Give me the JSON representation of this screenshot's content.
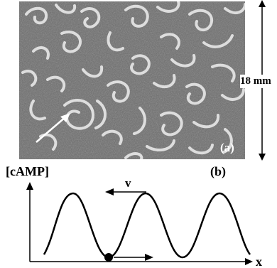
{
  "figure": {
    "panel_a_label": "(a)",
    "panel_b_label": "(b)",
    "scale_label": "18 mm",
    "ylabel": "[cAMP]",
    "xlabel": "x",
    "velocity_label": "v"
  },
  "colors": {
    "micrograph_background": "#6b6b6b",
    "spiral_stroke": "#e8e8e8",
    "ink": "#000000"
  },
  "chart_data": {
    "type": "line",
    "title": "",
    "xlabel": "x",
    "ylabel": "[cAMP]",
    "series": [
      {
        "name": "",
        "shape": "periodic wave",
        "peaks": 3
      }
    ],
    "annotations": [
      "v",
      "cell (filled circle) at wave trough",
      "arrow pointing to +x"
    ]
  }
}
